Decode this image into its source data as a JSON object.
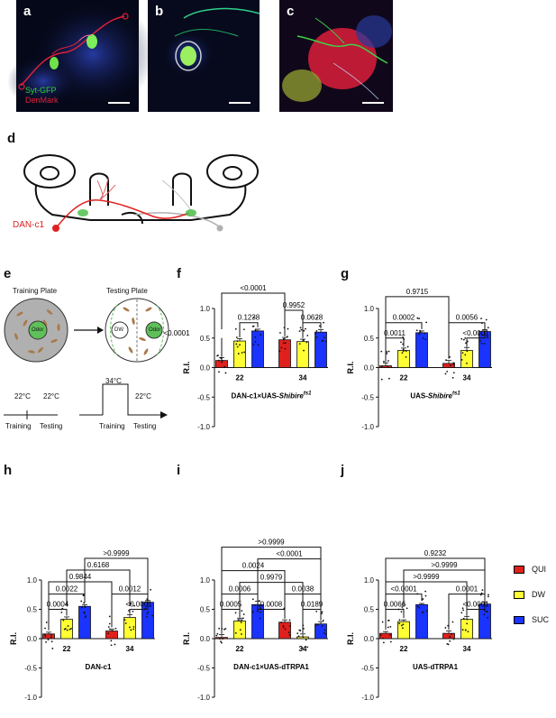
{
  "micrographs": [
    {
      "letter": "a",
      "legend": [
        "Syt-GFP",
        "DenMark"
      ],
      "legend_colors": [
        "#2ed12e",
        "#e0203a"
      ]
    },
    {
      "letter": "b",
      "legend": []
    },
    {
      "letter": "c",
      "legend": []
    }
  ],
  "diagram_d": {
    "letter": "d",
    "neuron_label": "DAN-c1",
    "neuron_color": "#e02020"
  },
  "schematic_e": {
    "letter": "e",
    "training_plate": "Training Plate",
    "testing_plate": "Testing Plate",
    "odor_label": "Odor",
    "dw_label": "DW",
    "temps": [
      "22°C",
      "22°C",
      "34°C",
      "22°C"
    ],
    "phases": [
      "Training",
      "Testing",
      "Training",
      "Testing"
    ]
  },
  "legend": {
    "items": [
      {
        "name": "QUI",
        "color": "#e0201d"
      },
      {
        "name": "DW",
        "color": "#ffff33"
      },
      {
        "name": "SUC",
        "color": "#1a33ff"
      }
    ]
  },
  "chart_data": [
    {
      "panel": "f",
      "type": "bar",
      "ylabel": "R.I.",
      "ylim": [
        -1.0,
        1.0
      ],
      "yticks": [
        "1.0",
        "0.5",
        "0.0",
        "-0.5",
        "-1.0"
      ],
      "categories": [
        "22",
        "34"
      ],
      "xlabel_main": "DAN-c1×UAS-",
      "xlabel_italic": "Shibire",
      "xlabel_sup": "ts1",
      "series": [
        {
          "name": "QUI",
          "values": [
            0.12,
            0.47
          ]
        },
        {
          "name": "DW",
          "values": [
            0.45,
            0.44
          ]
        },
        {
          "name": "SUC",
          "values": [
            0.62,
            0.6
          ]
        }
      ],
      "errors": [
        [
          0.05,
          0.04
        ],
        [
          0.04,
          0.04
        ],
        [
          0.03,
          0.04
        ]
      ],
      "brackets": [
        {
          "text": "<0.0001",
          "a": [
            0,
            0
          ],
          "b": [
            0,
            2
          ],
          "y": 0.5
        },
        {
          "text": "0.1238",
          "a": [
            1,
            0
          ],
          "b": [
            2,
            0
          ],
          "y": 0.76
        },
        {
          "text": "0.0628",
          "a": [
            1,
            1
          ],
          "b": [
            2,
            1
          ],
          "y": 0.76
        },
        {
          "text": "0.9952",
          "a": [
            0,
            1
          ],
          "b": [
            1,
            1
          ],
          "y": 0.97
        },
        {
          "text": "<0.0001",
          "a": [
            0,
            0
          ],
          "b": [
            0,
            1
          ],
          "y": 1.26
        }
      ]
    },
    {
      "panel": "g",
      "type": "bar",
      "ylabel": "R.I.",
      "ylim": [
        -1.0,
        1.0
      ],
      "yticks": [
        "1.0",
        "0.5",
        "0.0",
        "-0.5",
        "-1.0"
      ],
      "categories": [
        "22",
        "34"
      ],
      "xlabel_main": "UAS-",
      "xlabel_italic": "Shibire",
      "xlabel_sup": "ts1",
      "series": [
        {
          "name": "QUI",
          "values": [
            0.03,
            0.07
          ]
        },
        {
          "name": "DW",
          "values": [
            0.29,
            0.29
          ]
        },
        {
          "name": "SUC",
          "values": [
            0.59,
            0.61
          ]
        }
      ],
      "errors": [
        [
          0.05,
          0.05
        ],
        [
          0.04,
          0.05
        ],
        [
          0.03,
          0.03
        ]
      ],
      "brackets": [
        {
          "text": "0.0011",
          "a": [
            0,
            0
          ],
          "b": [
            1,
            0
          ],
          "y": 0.5
        },
        {
          "text": "<0.0001",
          "a": [
            1,
            1
          ],
          "b": [
            2,
            1
          ],
          "y": 0.5
        },
        {
          "text": "0.0002",
          "a": [
            0,
            0
          ],
          "b": [
            2,
            0
          ],
          "y": 0.76
        },
        {
          "text": "0.0056",
          "a": [
            0,
            1
          ],
          "b": [
            2,
            1
          ],
          "y": 0.76
        },
        {
          "text": "0.9715",
          "a": [
            0,
            0
          ],
          "b": [
            0,
            1
          ],
          "y": 1.2
        }
      ]
    },
    {
      "panel": "h",
      "type": "bar",
      "ylabel": "R.I.",
      "ylim": [
        -1.0,
        1.0
      ],
      "yticks": [
        "1.0",
        "0.5",
        "0.0",
        "-0.5",
        "-1.0"
      ],
      "categories": [
        "22",
        "34"
      ],
      "xlabel_main": "DAN-c1",
      "xlabel_italic": "",
      "xlabel_sup": "",
      "series": [
        {
          "name": "QUI",
          "values": [
            0.08,
            0.13
          ]
        },
        {
          "name": "DW",
          "values": [
            0.33,
            0.36
          ]
        },
        {
          "name": "SUC",
          "values": [
            0.55,
            0.62
          ]
        }
      ],
      "errors": [
        [
          0.03,
          0.03
        ],
        [
          0.04,
          0.05
        ],
        [
          0.03,
          0.03
        ]
      ],
      "brackets": [
        {
          "text": "0.0004",
          "a": [
            0,
            0
          ],
          "b": [
            1,
            0
          ],
          "y": 0.5
        },
        {
          "text": "<0.0001",
          "a": [
            1,
            1
          ],
          "b": [
            2,
            1
          ],
          "y": 0.5
        },
        {
          "text": "0.0022",
          "a": [
            0,
            0
          ],
          "b": [
            2,
            0
          ],
          "y": 0.76
        },
        {
          "text": "0.0012",
          "a": [
            0,
            1
          ],
          "b": [
            2,
            1
          ],
          "y": 0.76
        },
        {
          "text": "0.9844",
          "a": [
            0,
            0
          ],
          "b": [
            0,
            1
          ],
          "y": 0.97
        },
        {
          "text": "0.6168",
          "a": [
            1,
            0
          ],
          "b": [
            1,
            1
          ],
          "y": 1.17
        },
        {
          "text": ">0.9999",
          "a": [
            2,
            0
          ],
          "b": [
            2,
            1
          ],
          "y": 1.37
        }
      ]
    },
    {
      "panel": "i",
      "type": "bar",
      "ylabel": "R.I.",
      "ylim": [
        -1.0,
        1.0
      ],
      "yticks": [
        "1.0",
        "0.5",
        "0.0",
        "-0.5",
        "-1.0"
      ],
      "categories": [
        "22",
        "34"
      ],
      "xlabel_main": "DAN-c1×UAS-dTRPA1",
      "xlabel_italic": "",
      "xlabel_sup": "",
      "series": [
        {
          "name": "QUI",
          "values": [
            0.02,
            0.28
          ]
        },
        {
          "name": "DW",
          "values": [
            0.3,
            0.03
          ]
        },
        {
          "name": "SUC",
          "values": [
            0.58,
            0.25
          ]
        }
      ],
      "errors": [
        [
          0.05,
          0.04
        ],
        [
          0.05,
          0.05
        ],
        [
          0.06,
          0.04
        ]
      ],
      "brackets": [
        {
          "text": "0.0005",
          "a": [
            0,
            0
          ],
          "b": [
            1,
            0
          ],
          "y": 0.5
        },
        {
          "text": "0.0008",
          "a": [
            2,
            0
          ],
          "b": [
            0,
            1
          ],
          "y": 0.5
        },
        {
          "text": "0.0189",
          "a": [
            1,
            1
          ],
          "b": [
            2,
            1
          ],
          "y": 0.5
        },
        {
          "text": "0.0006",
          "a": [
            0,
            0
          ],
          "b": [
            2,
            0
          ],
          "y": 0.76
        },
        {
          "text": "0.0038",
          "a": [
            0,
            1
          ],
          "b": [
            2,
            1
          ],
          "y": 0.76
        },
        {
          "text": "0.9979",
          "a": [
            1,
            0
          ],
          "b": [
            1,
            1
          ],
          "y": 0.96
        },
        {
          "text": "0.0024",
          "a": [
            0,
            0
          ],
          "b": [
            0,
            1
          ],
          "y": 1.16
        },
        {
          "text": "<0.0001",
          "a": [
            2,
            0
          ],
          "b": [
            2,
            1
          ],
          "y": 1.36
        },
        {
          "text": ">0.9999",
          "a": [
            0,
            0
          ],
          "b": [
            2,
            1
          ],
          "y": 1.56
        }
      ]
    },
    {
      "panel": "j",
      "type": "bar",
      "ylabel": "R.I.",
      "ylim": [
        -1.0,
        1.0
      ],
      "yticks": [
        "1.0",
        "0.5",
        "0.0",
        "-0.5",
        "-1.0"
      ],
      "categories": [
        "22",
        "34"
      ],
      "xlabel_main": "UAS-dTRPA1",
      "xlabel_italic": "",
      "xlabel_sup": "",
      "series": [
        {
          "name": "QUI",
          "values": [
            0.09,
            0.09
          ]
        },
        {
          "name": "DW",
          "values": [
            0.29,
            0.33
          ]
        },
        {
          "name": "SUC",
          "values": [
            0.58,
            0.59
          ]
        }
      ],
      "errors": [
        [
          0.03,
          0.04
        ],
        [
          0.03,
          0.05
        ],
        [
          0.02,
          0.03
        ]
      ],
      "brackets": [
        {
          "text": "0.0066",
          "a": [
            0,
            0
          ],
          "b": [
            1,
            0
          ],
          "y": 0.5
        },
        {
          "text": "<0.0001",
          "a": [
            1,
            1
          ],
          "b": [
            2,
            1
          ],
          "y": 0.5
        },
        {
          "text": "<0.0001",
          "a": [
            0,
            0
          ],
          "b": [
            2,
            0
          ],
          "y": 0.76
        },
        {
          "text": "0.0001",
          "a": [
            0,
            1
          ],
          "b": [
            2,
            1
          ],
          "y": 0.76
        },
        {
          "text": ">0.9999",
          "a": [
            0,
            0
          ],
          "b": [
            1,
            1
          ],
          "y": 0.97
        },
        {
          "text": ">0.9999",
          "a": [
            1,
            0
          ],
          "b": [
            2,
            1
          ],
          "y": 1.17
        },
        {
          "text": "0.9232",
          "a": [
            0,
            0
          ],
          "b": [
            2,
            1
          ],
          "y": 1.37
        }
      ]
    }
  ]
}
